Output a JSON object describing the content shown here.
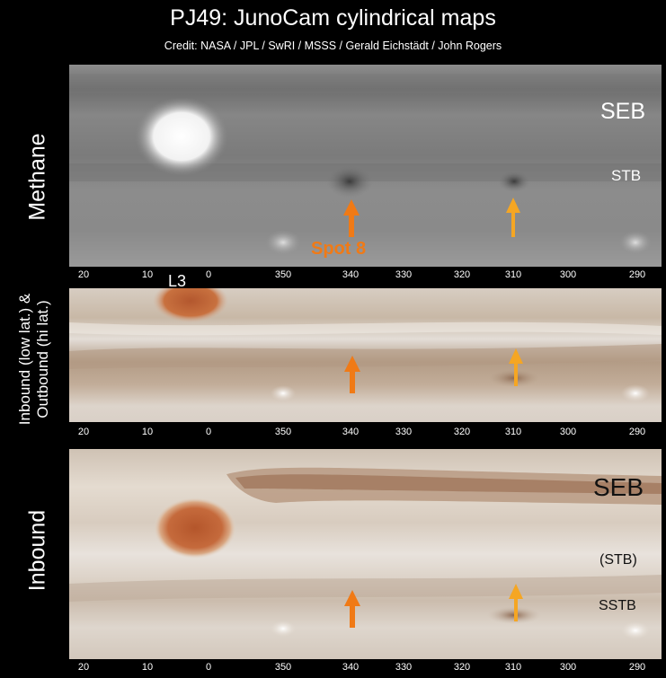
{
  "title": "PJ49:  JunoCam cylindrical maps",
  "credit": "Credit: NASA / JPL / SwRI / MSSS / Gerald Eichstädt / John Rogers",
  "panels": {
    "methane": {
      "side_label": "Methane",
      "belt_labels": [
        "SEB",
        "STB"
      ],
      "annotation": "Spot 8"
    },
    "combined": {
      "side_label_line1": "Inbound (low lat.) &",
      "side_label_line2": "Outbound (hi lat.)",
      "longitude_marker": "L3"
    },
    "inbound": {
      "side_label": "Inbound",
      "belt_labels": [
        "SEB",
        "(STB)",
        "SSTB"
      ]
    }
  },
  "longitude_ticks": [
    "20",
    "10",
    "0",
    "350",
    "340",
    "330",
    "320",
    "310",
    "300",
    "290"
  ],
  "colors": {
    "arrow_main": "#f07a16",
    "arrow_secondary": "#f5a623"
  },
  "icons": [
    "arrow-up-icon"
  ]
}
